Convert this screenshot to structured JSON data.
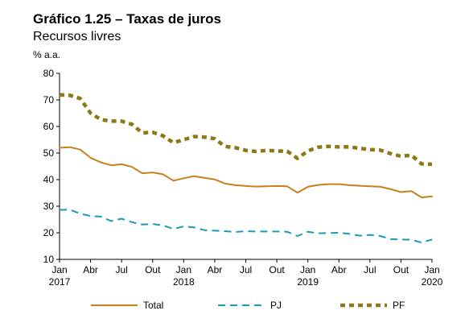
{
  "chart_data": {
    "type": "line",
    "title": "Gráfico 1.25 – Taxas de juros",
    "subtitle": "Recursos livres",
    "ylabel": "% a.a.",
    "xlabel": "",
    "ylim": [
      10,
      80
    ],
    "yticks": [
      "10",
      "20",
      "30",
      "40",
      "50",
      "60",
      "70",
      "80"
    ],
    "x_tick_labels": [
      {
        "line1": "Jan",
        "line2": "2017"
      },
      {
        "line1": "Abr",
        "line2": ""
      },
      {
        "line1": "Jul",
        "line2": ""
      },
      {
        "line1": "Out",
        "line2": ""
      },
      {
        "line1": "Jan",
        "line2": "2018"
      },
      {
        "line1": "Abr",
        "line2": ""
      },
      {
        "line1": "Jul",
        "line2": ""
      },
      {
        "line1": "Out",
        "line2": ""
      },
      {
        "line1": "Jan",
        "line2": "2019"
      },
      {
        "line1": "Abr",
        "line2": ""
      },
      {
        "line1": "Jul",
        "line2": ""
      },
      {
        "line1": "Out",
        "line2": ""
      },
      {
        "line1": "Jan",
        "line2": "2020"
      }
    ],
    "x": [
      "2017-01",
      "2017-02",
      "2017-03",
      "2017-04",
      "2017-05",
      "2017-06",
      "2017-07",
      "2017-08",
      "2017-09",
      "2017-10",
      "2017-11",
      "2017-12",
      "2018-01",
      "2018-02",
      "2018-03",
      "2018-04",
      "2018-05",
      "2018-06",
      "2018-07",
      "2018-08",
      "2018-09",
      "2018-10",
      "2018-11",
      "2018-12",
      "2019-01",
      "2019-02",
      "2019-03",
      "2019-04",
      "2019-05",
      "2019-06",
      "2019-07",
      "2019-08",
      "2019-09",
      "2019-10",
      "2019-11",
      "2019-12",
      "2020-01"
    ],
    "grid": false,
    "legend": "bottom",
    "series": [
      {
        "name": "Total",
        "color": "#C8801E",
        "style": "solid",
        "values": [
          52.0,
          52.2,
          51.3,
          48.2,
          46.5,
          45.4,
          45.8,
          44.8,
          42.4,
          42.7,
          42.0,
          39.6,
          40.5,
          41.3,
          40.7,
          40.1,
          38.5,
          37.9,
          37.6,
          37.4,
          37.5,
          37.6,
          37.5,
          35.1,
          37.3,
          38.0,
          38.3,
          38.3,
          37.9,
          37.7,
          37.5,
          37.3,
          36.4,
          35.3,
          35.7,
          33.3,
          33.7
        ]
      },
      {
        "name": "PJ",
        "color": "#1B9AB5",
        "style": "dashed",
        "values": [
          28.6,
          28.7,
          27.2,
          26.3,
          26.1,
          24.4,
          25.3,
          24.0,
          23.1,
          23.3,
          22.8,
          21.5,
          22.4,
          22.0,
          21.0,
          20.8,
          20.6,
          20.3,
          20.6,
          20.5,
          20.5,
          20.5,
          20.4,
          18.8,
          20.4,
          19.8,
          19.9,
          20.0,
          19.6,
          18.9,
          19.2,
          18.8,
          17.6,
          17.5,
          17.4,
          16.3,
          17.5
        ]
      },
      {
        "name": "PF",
        "color": "#8C7814",
        "style": "dashed-thick",
        "values": [
          71.9,
          71.7,
          70.5,
          65.0,
          62.6,
          62.0,
          62.0,
          60.8,
          57.6,
          57.8,
          56.5,
          53.9,
          55.0,
          56.2,
          56.0,
          55.4,
          52.5,
          52.0,
          51.0,
          50.6,
          51.0,
          50.8,
          50.7,
          48.0,
          50.8,
          52.2,
          52.5,
          52.3,
          52.3,
          51.8,
          51.3,
          51.1,
          49.8,
          48.8,
          49.2,
          45.9,
          45.8
        ]
      }
    ]
  }
}
